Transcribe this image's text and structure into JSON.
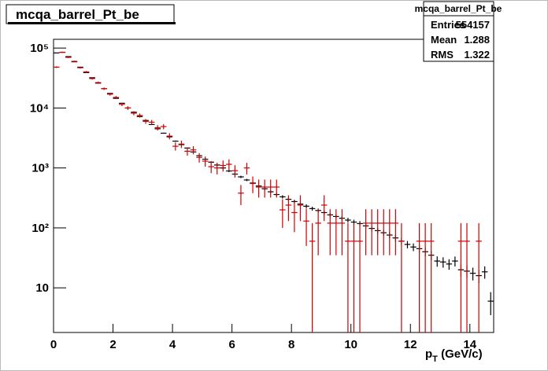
{
  "chart_data": {
    "type": "histogram-errors",
    "title": "mcqa_barrel_Pt_be",
    "xlabel_parts": [
      "p",
      "T",
      " (GeV/c)"
    ],
    "stats": {
      "title": "mcqa_barrel_Pt_be",
      "rows": [
        {
          "label": "Entries",
          "value": 554157
        },
        {
          "label": "Mean",
          "value": 1.288
        },
        {
          "label": "RMS",
          "value": 1.322
        }
      ]
    },
    "bins": [
      0,
      0.2,
      0.4,
      0.6,
      0.8,
      1,
      1.2,
      1.4,
      1.6,
      1.8,
      2,
      2.2,
      2.4,
      2.6,
      2.8,
      3,
      3.2,
      3.4,
      3.6,
      3.8,
      4,
      4.2,
      4.4,
      4.6,
      4.8,
      5,
      5.2,
      5.4,
      5.6,
      5.8,
      6,
      6.2,
      6.4,
      6.6,
      6.8,
      7,
      7.2,
      7.4,
      7.6,
      7.8,
      8,
      8.2,
      8.4,
      8.6,
      8.8,
      9,
      9.2,
      9.4,
      9.6,
      9.8,
      10,
      10.2,
      10.4,
      10.6,
      10.8,
      11,
      11.2,
      11.4,
      11.6,
      11.8,
      12,
      12.2,
      12.4,
      12.6,
      12.8,
      13,
      13.2,
      13.4,
      13.6,
      13.8,
      14,
      14.2,
      14.4,
      14.6,
      14.8
    ],
    "series": [
      {
        "color": "#000000",
        "values": [
          83000,
          85000,
          72000,
          59000,
          48000,
          39000,
          32000,
          26000,
          21000,
          17500,
          14500,
          12000,
          10000,
          8500,
          7200,
          6200,
          5300,
          4500,
          3800,
          3300,
          2800,
          2450,
          2150,
          1850,
          1600,
          1400,
          1250,
          1120,
          1000,
          890,
          790,
          710,
          630,
          560,
          500,
          450,
          400,
          360,
          330,
          300,
          275,
          250,
          230,
          210,
          195,
          180,
          165,
          155,
          145,
          135,
          125,
          118,
          108,
          98,
          90,
          83,
          76,
          68,
          60,
          53,
          48,
          45,
          40,
          35,
          28,
          27,
          25,
          28,
          20,
          19,
          17.5,
          16,
          18.5,
          6
        ],
        "errors": [
          400,
          420,
          380,
          340,
          300,
          270,
          240,
          210,
          190,
          170,
          150,
          140,
          125,
          115,
          105,
          95,
          90,
          80,
          75,
          70,
          65,
          60,
          55,
          52,
          48,
          45,
          42,
          40,
          37,
          35,
          33,
          31,
          29,
          27,
          25,
          24,
          23,
          22,
          21,
          20,
          19,
          18,
          17,
          16,
          15,
          14.5,
          14,
          13.5,
          13,
          12.5,
          12,
          11.5,
          11,
          10.5,
          10,
          9.5,
          9,
          8.5,
          8,
          7.5,
          7,
          6.8,
          6.5,
          6,
          5.5,
          5.3,
          5,
          5.3,
          4.5,
          4.3,
          4.2,
          4,
          4.3,
          2.5
        ]
      },
      {
        "color": "#cc0000",
        "values": [
          48000,
          85000,
          70000,
          60000,
          47000,
          40000,
          31000,
          26500,
          21000,
          17000,
          15000,
          11500,
          10000,
          8200,
          7500,
          6000,
          5800,
          4700,
          4900,
          3400,
          2300,
          2500,
          1900,
          2000,
          1500,
          1300,
          1050,
          1000,
          1100,
          1150,
          900,
          380,
          1000,
          550,
          480,
          480,
          480,
          480,
          200,
          240,
          180,
          240,
          130,
          60,
          120,
          240,
          120,
          120,
          120,
          60,
          60,
          60,
          120,
          120,
          120,
          120,
          120,
          120,
          60,
          null,
          null,
          60,
          60,
          60,
          null,
          null,
          null,
          null,
          60,
          60,
          null,
          60,
          null,
          null
        ],
        "errors": [
          1500,
          2000,
          1800,
          1700,
          1500,
          1400,
          1200,
          1100,
          1000,
          900,
          850,
          750,
          700,
          650,
          600,
          550,
          520,
          480,
          480,
          400,
          350,
          350,
          300,
          310,
          270,
          250,
          230,
          220,
          230,
          240,
          210,
          140,
          220,
          170,
          160,
          160,
          160,
          160,
          100,
          110,
          95,
          110,
          80,
          60,
          85,
          110,
          85,
          85,
          85,
          60,
          60,
          60,
          85,
          85,
          85,
          85,
          85,
          85,
          60,
          null,
          null,
          60,
          60,
          60,
          null,
          null,
          null,
          null,
          60,
          60,
          null,
          60,
          null,
          null
        ]
      }
    ],
    "xlim": [
      0,
      14.8
    ],
    "xticks": [
      0,
      2,
      4,
      6,
      8,
      10,
      12,
      14
    ],
    "ylim": [
      1.8,
      140000
    ],
    "log_y": true,
    "yticks": [
      10,
      {
        "value": 100,
        "label": "10²"
      },
      {
        "value": 1000,
        "label": "10³"
      },
      {
        "value": 10000,
        "label": "10⁴"
      },
      {
        "value": 100000,
        "label": "10⁵"
      }
    ]
  }
}
